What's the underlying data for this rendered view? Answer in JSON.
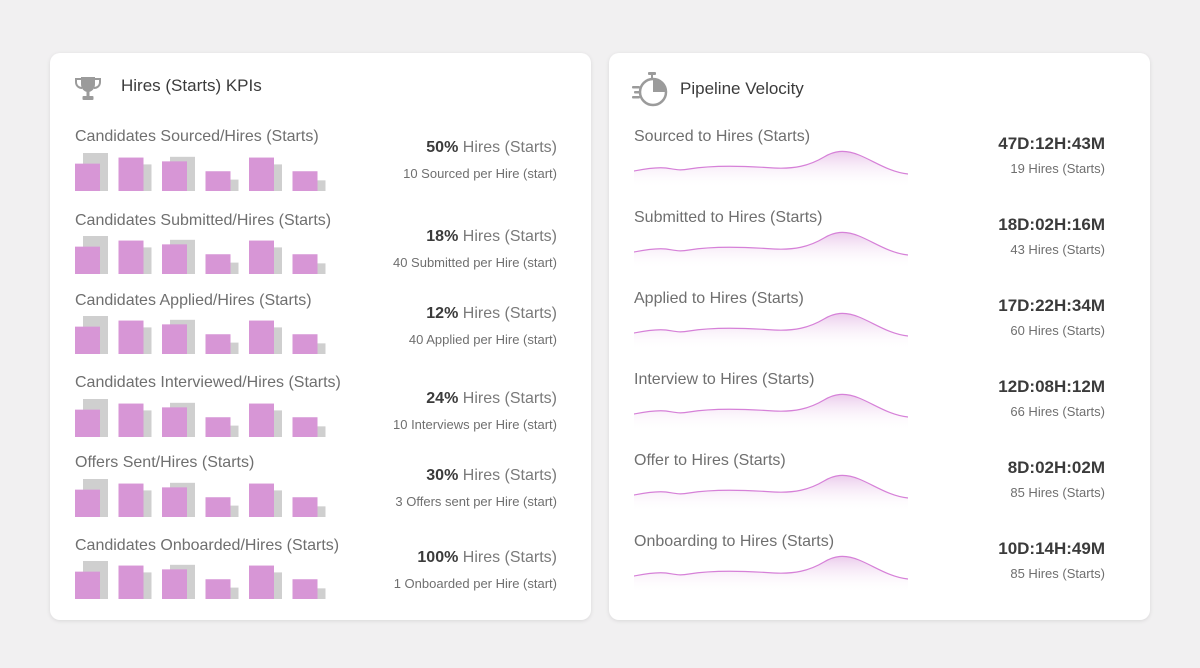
{
  "colors": {
    "accent": "#d796d6",
    "ghost": "#cfcfcf",
    "line": "#d681d8"
  },
  "kpi": {
    "title": "Hires (Starts) KPIs",
    "icon": "trophy-icon",
    "rows": [
      {
        "label": "Candidates Sourced/Hires (Starts)",
        "percent": "50%",
        "unit": "Hires (Starts)",
        "sub": "10 Sourced per Hire (start)"
      },
      {
        "label": "Candidates Submitted/Hires (Starts)",
        "percent": "18%",
        "unit": "Hires (Starts)",
        "sub": "40 Submitted per Hire (start)"
      },
      {
        "label": "Candidates Applied/Hires (Starts)",
        "percent": "12%",
        "unit": "Hires (Starts)",
        "sub": "40 Applied per Hire (start)"
      },
      {
        "label": "Candidates Interviewed/Hires (Starts)",
        "percent": "24%",
        "unit": "Hires (Starts)",
        "sub": "10 Interviews per Hire (start)"
      },
      {
        "label": "Offers Sent/Hires (Starts)",
        "percent": "30%",
        "unit": "Hires (Starts)",
        "sub": "3 Offers sent per Hire (start)"
      },
      {
        "label": "Candidates Onboarded/Hires (Starts)",
        "percent": "100%",
        "unit": "Hires (Starts)",
        "sub": "1 Onboarded per Hire (start)"
      }
    ],
    "bar_pattern": {
      "front": [
        0.72,
        0.88,
        0.78,
        0.52,
        0.88,
        0.52
      ],
      "back": [
        1.0,
        0.7,
        0.9,
        0.3,
        0.7,
        0.28
      ]
    }
  },
  "velocity": {
    "title": "Pipeline Velocity",
    "icon": "stopwatch-icon",
    "rows": [
      {
        "label": "Sourced to Hires (Starts)",
        "value": "47D:12H:43M",
        "sub": "19 Hires (Starts)"
      },
      {
        "label": "Submitted to Hires (Starts)",
        "value": "18D:02H:16M",
        "sub": "43 Hires (Starts)"
      },
      {
        "label": "Applied to Hires (Starts)",
        "value": "17D:22H:34M",
        "sub": "60 Hires (Starts)"
      },
      {
        "label": "Interview to Hires (Starts)",
        "value": "12D:08H:12M",
        "sub": "66 Hires (Starts)"
      },
      {
        "label": "Offer to Hires (Starts)",
        "value": "8D:02H:02M",
        "sub": "85 Hires (Starts)"
      },
      {
        "label": "Onboarding to Hires (Starts)",
        "value": "10D:14H:49M",
        "sub": "85 Hires (Starts)"
      }
    ]
  }
}
